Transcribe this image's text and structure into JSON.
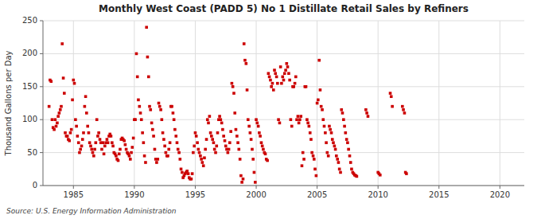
{
  "chart_data": {
    "type": "scatter",
    "title": "Monthly West Coast (PADD 5) No 1 Distillate Retail Sales by Refiners",
    "ylabel": "Thousand Gallons per Day",
    "annotation": "Source: U.S. Energy Information Administration",
    "color": "#cc0000",
    "marker": "square",
    "grid": true,
    "xlim": [
      1982.5,
      2022
    ],
    "ylim": [
      0,
      250
    ],
    "xticks": [
      1985,
      1990,
      1995,
      2000,
      2005,
      2010,
      2015,
      2020
    ],
    "yticks": [
      0,
      50,
      100,
      150,
      200,
      250
    ],
    "x": [
      1983.0,
      1983.08,
      1983.17,
      1983.25,
      1983.33,
      1983.42,
      1983.5,
      1983.58,
      1983.67,
      1983.75,
      1983.83,
      1983.92,
      1984.0,
      1984.08,
      1984.17,
      1984.25,
      1984.33,
      1984.42,
      1984.5,
      1984.58,
      1984.67,
      1984.75,
      1984.83,
      1984.92,
      1985.0,
      1985.08,
      1985.17,
      1985.25,
      1985.33,
      1985.42,
      1985.5,
      1985.58,
      1985.67,
      1985.75,
      1985.83,
      1985.92,
      1986.0,
      1986.08,
      1986.17,
      1986.25,
      1986.33,
      1986.42,
      1986.5,
      1986.58,
      1986.67,
      1986.75,
      1986.83,
      1986.92,
      1987.0,
      1987.08,
      1987.17,
      1987.25,
      1987.33,
      1987.42,
      1987.5,
      1987.58,
      1987.67,
      1987.75,
      1987.83,
      1987.92,
      1988.0,
      1988.08,
      1988.17,
      1988.25,
      1988.33,
      1988.42,
      1988.5,
      1988.58,
      1988.67,
      1988.75,
      1988.83,
      1988.92,
      1989.0,
      1989.08,
      1989.17,
      1989.25,
      1989.33,
      1989.42,
      1989.5,
      1989.58,
      1989.67,
      1989.75,
      1989.83,
      1989.92,
      1990.0,
      1990.08,
      1990.17,
      1990.25,
      1990.33,
      1990.42,
      1990.5,
      1990.58,
      1990.67,
      1990.75,
      1990.83,
      1990.92,
      1991.0,
      1991.08,
      1991.17,
      1991.25,
      1991.33,
      1991.42,
      1991.5,
      1991.58,
      1991.67,
      1991.75,
      1991.83,
      1991.92,
      1992.0,
      1992.08,
      1992.17,
      1992.25,
      1992.33,
      1992.42,
      1992.5,
      1992.58,
      1992.67,
      1992.75,
      1992.83,
      1992.92,
      1993.0,
      1993.08,
      1993.17,
      1993.25,
      1993.33,
      1993.42,
      1993.5,
      1993.58,
      1993.67,
      1993.75,
      1993.83,
      1993.92,
      1994.0,
      1994.08,
      1994.17,
      1994.25,
      1994.33,
      1994.42,
      1994.5,
      1994.58,
      1994.67,
      1994.75,
      1994.83,
      1994.92,
      1995.0,
      1995.08,
      1995.17,
      1995.25,
      1995.33,
      1995.42,
      1995.5,
      1995.58,
      1995.67,
      1995.75,
      1995.83,
      1995.92,
      1996.0,
      1996.08,
      1996.17,
      1996.25,
      1996.33,
      1996.42,
      1996.5,
      1996.58,
      1996.67,
      1996.75,
      1996.83,
      1996.92,
      1997.0,
      1997.08,
      1997.17,
      1997.25,
      1997.33,
      1997.42,
      1997.5,
      1997.58,
      1997.67,
      1997.75,
      1997.83,
      1997.92,
      1998.0,
      1998.08,
      1998.17,
      1998.25,
      1998.33,
      1998.42,
      1998.5,
      1998.58,
      1998.67,
      1998.75,
      1998.83,
      1998.92,
      1999.0,
      1999.08,
      1999.17,
      1999.25,
      1999.33,
      1999.42,
      1999.5,
      1999.58,
      1999.67,
      1999.75,
      1999.83,
      1999.92,
      2000.0,
      2000.08,
      2000.17,
      2000.25,
      2000.33,
      2000.42,
      2000.5,
      2000.58,
      2000.67,
      2000.75,
      2000.83,
      2000.92,
      2001.0,
      2001.08,
      2001.17,
      2001.25,
      2001.33,
      2001.42,
      2001.5,
      2001.58,
      2001.67,
      2001.75,
      2001.83,
      2001.92,
      2002.0,
      2002.08,
      2002.17,
      2002.25,
      2002.33,
      2002.42,
      2002.5,
      2002.58,
      2002.67,
      2002.75,
      2002.83,
      2002.92,
      2003.0,
      2003.08,
      2003.17,
      2003.25,
      2003.33,
      2003.42,
      2003.5,
      2003.58,
      2003.67,
      2003.75,
      2003.83,
      2003.92,
      2004.0,
      2004.08,
      2004.17,
      2004.25,
      2004.33,
      2004.42,
      2004.5,
      2004.58,
      2004.67,
      2004.75,
      2004.83,
      2004.92,
      2005.0,
      2005.08,
      2005.17,
      2005.25,
      2005.33,
      2005.42,
      2005.5,
      2005.58,
      2005.67,
      2005.75,
      2005.83,
      2005.92,
      2006.0,
      2006.08,
      2006.17,
      2006.25,
      2006.33,
      2006.42,
      2006.5,
      2006.58,
      2006.67,
      2006.75,
      2006.83,
      2006.92,
      2007.0,
      2007.08,
      2007.17,
      2007.25,
      2007.33,
      2007.42,
      2007.5,
      2007.58,
      2007.67,
      2007.75,
      2007.83,
      2007.92,
      2008.0,
      2008.08,
      2008.17,
      2008.25,
      2009.0,
      2009.08,
      2009.17,
      2010.0,
      2010.08,
      2010.17,
      2011.0,
      2011.08,
      2011.17,
      2012.0,
      2012.08,
      2012.17,
      2012.25,
      2012.33
    ],
    "values": [
      120,
      160,
      158,
      100,
      88,
      85,
      100,
      90,
      95,
      105,
      110,
      115,
      120,
      215,
      163,
      140,
      80,
      75,
      75,
      70,
      68,
      80,
      85,
      130,
      160,
      155,
      100,
      90,
      75,
      65,
      50,
      55,
      60,
      70,
      80,
      120,
      135,
      110,
      90,
      80,
      65,
      60,
      55,
      50,
      45,
      55,
      65,
      100,
      75,
      80,
      70,
      65,
      55,
      65,
      48,
      60,
      65,
      70,
      65,
      75,
      78,
      75,
      65,
      60,
      50,
      48,
      45,
      40,
      38,
      48,
      55,
      70,
      72,
      70,
      68,
      62,
      55,
      50,
      48,
      45,
      40,
      50,
      58,
      72,
      100,
      100,
      200,
      165,
      130,
      120,
      110,
      100,
      80,
      65,
      45,
      35,
      240,
      195,
      165,
      120,
      115,
      95,
      85,
      75,
      55,
      40,
      35,
      40,
      125,
      120,
      115,
      100,
      80,
      70,
      60,
      50,
      45,
      45,
      55,
      65,
      120,
      120,
      110,
      100,
      85,
      75,
      65,
      55,
      50,
      40,
      25,
      20,
      12,
      15,
      18,
      20,
      22,
      18,
      12,
      10,
      10,
      18,
      50,
      60,
      80,
      75,
      65,
      55,
      50,
      45,
      40,
      35,
      30,
      42,
      55,
      70,
      100,
      95,
      105,
      80,
      75,
      70,
      65,
      55,
      50,
      60,
      80,
      100,
      105,
      100,
      95,
      85,
      75,
      68,
      60,
      55,
      50,
      55,
      65,
      82,
      155,
      150,
      140,
      110,
      85,
      75,
      65,
      55,
      40,
      15,
      5,
      10,
      215,
      190,
      185,
      145,
      100,
      90,
      80,
      70,
      55,
      40,
      20,
      5,
      100,
      95,
      90,
      80,
      75,
      65,
      60,
      55,
      50,
      48,
      40,
      38,
      170,
      165,
      160,
      150,
      155,
      145,
      175,
      170,
      165,
      155,
      100,
      95,
      180,
      155,
      165,
      160,
      170,
      175,
      185,
      180,
      170,
      160,
      100,
      90,
      150,
      150,
      155,
      165,
      100,
      105,
      95,
      100,
      105,
      30,
      50,
      40,
      150,
      150,
      100,
      95,
      90,
      80,
      70,
      50,
      45,
      40,
      25,
      15,
      125,
      130,
      190,
      145,
      120,
      115,
      100,
      90,
      80,
      65,
      50,
      45,
      90,
      85,
      80,
      70,
      65,
      60,
      55,
      45,
      40,
      35,
      25,
      20,
      115,
      110,
      100,
      90,
      80,
      70,
      65,
      55,
      45,
      35,
      25,
      20,
      18,
      16,
      15,
      14,
      115,
      110,
      105,
      20,
      18,
      16,
      140,
      135,
      120,
      120,
      115,
      110,
      20,
      18
    ]
  }
}
